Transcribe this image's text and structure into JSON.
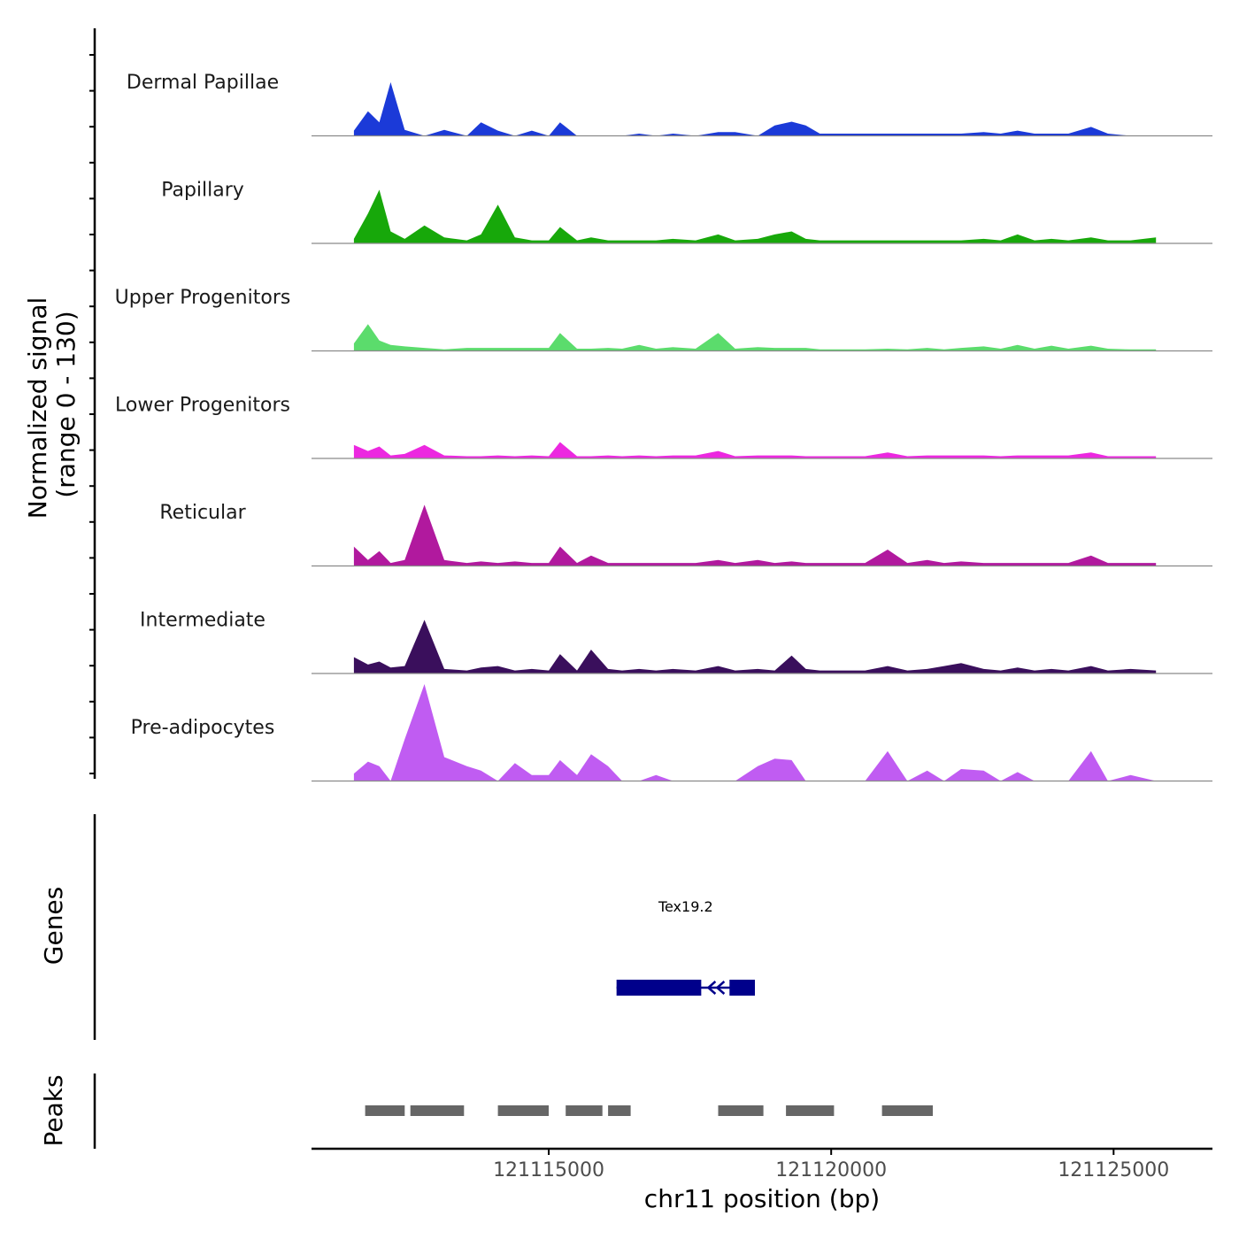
{
  "chart_data": {
    "type": "area",
    "title": "",
    "chromosome": "chr11",
    "xlabel": "chr11 position (bp)",
    "ylabel_line1": "Normalized signal",
    "ylabel_line2": "(range 0 - 130)",
    "ylim": [
      0,
      130
    ],
    "xlim": [
      121110800,
      121126750
    ],
    "x_ticks": [
      121115000,
      121120000,
      121125000
    ],
    "x_tick_labels": [
      "121115000",
      "121120000",
      "121125000"
    ],
    "profile_positions": [
      121111550,
      121111800,
      121112000,
      121112200,
      121112450,
      121112800,
      121113150,
      121113550,
      121113800,
      121114100,
      121114400,
      121114700,
      121115000,
      121115200,
      121115500,
      121115750,
      121116050,
      121116300,
      121116600,
      121116900,
      121117200,
      121117600,
      121118000,
      121118300,
      121118700,
      121119000,
      121119300,
      121119550,
      121119800,
      121120200,
      121120600,
      121121000,
      121121350,
      121121700,
      121122000,
      121122300,
      121122700,
      121123000,
      121123300,
      121123600,
      121123900,
      121124200,
      121124600,
      121124900,
      121125300,
      121125750
    ],
    "series": [
      {
        "name": "Dermal Papillae",
        "color": "#1b3ad8",
        "values": [
          7,
          33,
          18,
          72,
          8,
          0,
          8,
          0,
          18,
          7,
          0,
          7,
          0,
          18,
          0,
          0,
          0,
          0,
          3,
          0,
          3,
          0,
          5,
          5,
          0,
          14,
          19,
          14,
          3,
          3,
          3,
          3,
          3,
          3,
          3,
          3,
          5,
          3,
          7,
          3,
          3,
          3,
          12,
          3,
          0,
          0
        ]
      },
      {
        "name": "Papillary",
        "color": "#17a80a",
        "values": [
          6,
          40,
          72,
          16,
          6,
          24,
          8,
          4,
          12,
          52,
          8,
          4,
          4,
          22,
          4,
          8,
          4,
          4,
          4,
          4,
          6,
          4,
          12,
          4,
          6,
          12,
          16,
          6,
          4,
          4,
          4,
          4,
          4,
          4,
          4,
          4,
          6,
          4,
          12,
          4,
          6,
          4,
          8,
          4,
          4,
          8
        ]
      },
      {
        "name": "Upper Progenitors",
        "color": "#5bdc6c",
        "values": [
          10,
          36,
          14,
          8,
          6,
          4,
          2,
          4,
          4,
          4,
          4,
          4,
          4,
          24,
          3,
          3,
          4,
          3,
          8,
          3,
          5,
          3,
          24,
          3,
          5,
          4,
          4,
          4,
          2,
          2,
          2,
          3,
          2,
          4,
          2,
          4,
          6,
          3,
          8,
          3,
          7,
          3,
          7,
          3,
          2,
          2
        ]
      },
      {
        "name": "Lower Progenitors",
        "color": "#ec28e0",
        "values": [
          18,
          10,
          16,
          4,
          6,
          18,
          4,
          3,
          3,
          4,
          3,
          4,
          3,
          22,
          3,
          3,
          4,
          3,
          4,
          3,
          4,
          4,
          10,
          3,
          4,
          4,
          4,
          3,
          3,
          3,
          3,
          8,
          3,
          4,
          4,
          4,
          4,
          3,
          4,
          4,
          4,
          4,
          8,
          3,
          3,
          3
        ]
      },
      {
        "name": "Reticular",
        "color": "#b1199e",
        "values": [
          26,
          8,
          20,
          4,
          8,
          82,
          8,
          4,
          6,
          4,
          6,
          4,
          4,
          26,
          4,
          14,
          4,
          4,
          4,
          4,
          4,
          4,
          8,
          4,
          8,
          4,
          6,
          4,
          4,
          4,
          4,
          22,
          4,
          8,
          4,
          6,
          4,
          4,
          4,
          4,
          4,
          4,
          14,
          4,
          4,
          4
        ]
      },
      {
        "name": "Intermediate",
        "color": "#3a0f5c",
        "values": [
          22,
          12,
          16,
          8,
          10,
          72,
          6,
          4,
          8,
          10,
          4,
          6,
          4,
          26,
          4,
          32,
          6,
          4,
          6,
          4,
          6,
          4,
          10,
          4,
          6,
          4,
          24,
          6,
          4,
          4,
          4,
          10,
          4,
          6,
          10,
          14,
          6,
          4,
          8,
          4,
          6,
          4,
          10,
          4,
          6,
          4
        ]
      },
      {
        "name": "Pre-adipocytes",
        "color": "#c05cf2",
        "values": [
          10,
          26,
          20,
          0,
          56,
          130,
          32,
          20,
          14,
          0,
          24,
          8,
          8,
          28,
          8,
          36,
          20,
          0,
          0,
          8,
          0,
          0,
          0,
          0,
          20,
          30,
          28,
          0,
          0,
          0,
          0,
          40,
          0,
          14,
          0,
          16,
          14,
          0,
          12,
          0,
          0,
          0,
          40,
          0,
          8,
          0
        ]
      }
    ],
    "genes": [
      {
        "name": "Tex19.2",
        "strand": "-",
        "start": 121116200,
        "end": 121118650,
        "exons": [
          [
            121116200,
            121117700
          ],
          [
            121118200,
            121118650
          ]
        ],
        "color": "#00008b"
      }
    ],
    "gene_panel_title": "Genes",
    "peaks_panel_title": "Peaks",
    "peak_color": "#666666",
    "peaks": [
      [
        121111750,
        121112450
      ],
      [
        121112550,
        121113500
      ],
      [
        121114100,
        121115000
      ],
      [
        121115300,
        121115950
      ],
      [
        121116050,
        121116450
      ],
      [
        121118000,
        121118800
      ],
      [
        121119200,
        121120050
      ],
      [
        121120900,
        121121800
      ]
    ]
  }
}
